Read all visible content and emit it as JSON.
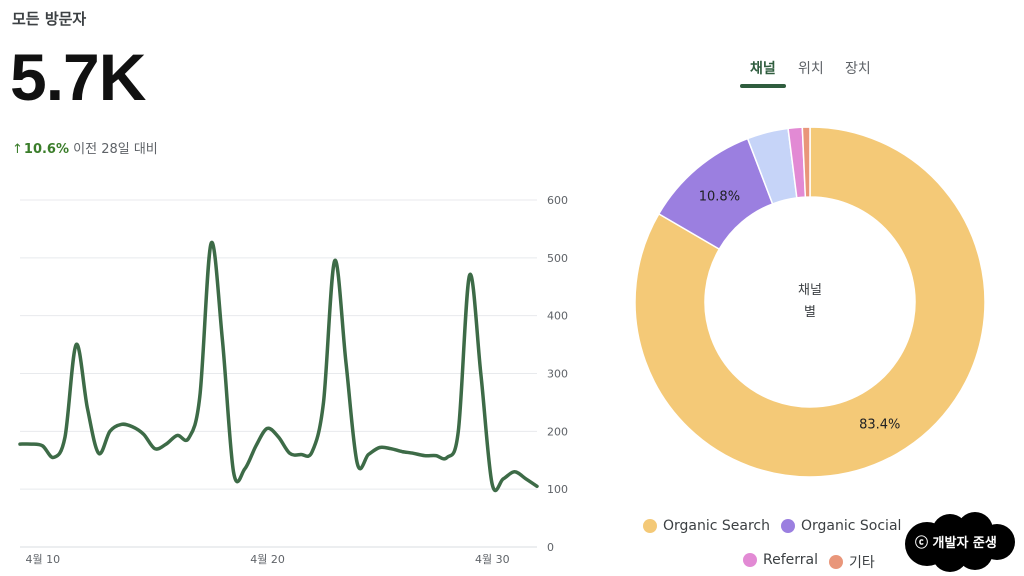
{
  "header": {
    "title": "모든 방문자",
    "big_value": "5.7K",
    "delta_arrow": "↑",
    "delta_value": "10.6%",
    "delta_caption": "이전 28일 대비"
  },
  "tabs": [
    {
      "label": "채널",
      "active": true
    },
    {
      "label": "위치",
      "active": false
    },
    {
      "label": "장치",
      "active": false
    }
  ],
  "watermark": "ⓒ 개발자 준생",
  "colors": {
    "line": "#3d6b47",
    "grid": "#e8eaed",
    "axis_text": "#5f6368",
    "active_tab": "#2f5d3e"
  },
  "chart_data": [
    {
      "type": "line",
      "title": "",
      "xlabel": "",
      "ylabel": "",
      "ylim": [
        0,
        600
      ],
      "y_ticks": [
        "0",
        "100",
        "200",
        "300",
        "400",
        "500",
        "600"
      ],
      "y_axis_side": "right",
      "grid": true,
      "x_tick_labels": [
        {
          "label": "4월 10",
          "day": 10
        },
        {
          "label": "4월 20",
          "day": 20
        },
        {
          "label": "4월 30",
          "day": 30
        }
      ],
      "series": [
        {
          "color": "#3d6b47",
          "points": [
            [
              9.0,
              178
            ],
            [
              9.5,
              178
            ],
            [
              10.0,
              175
            ],
            [
              10.5,
              155
            ],
            [
              11.0,
              190
            ],
            [
              11.5,
              350
            ],
            [
              12.0,
              240
            ],
            [
              12.5,
              162
            ],
            [
              13.0,
              200
            ],
            [
              13.5,
              212
            ],
            [
              14.0,
              208
            ],
            [
              14.5,
              195
            ],
            [
              15.0,
              170
            ],
            [
              15.5,
              178
            ],
            [
              16.0,
              193
            ],
            [
              16.5,
              188
            ],
            [
              17.0,
              260
            ],
            [
              17.5,
              525
            ],
            [
              18.0,
              360
            ],
            [
              18.5,
              130
            ],
            [
              19.0,
              135
            ],
            [
              19.5,
              175
            ],
            [
              20.0,
              205
            ],
            [
              20.5,
              190
            ],
            [
              21.0,
              162
            ],
            [
              21.5,
              160
            ],
            [
              22.0,
              165
            ],
            [
              22.5,
              250
            ],
            [
              23.0,
              495
            ],
            [
              23.5,
              320
            ],
            [
              24.0,
              145
            ],
            [
              24.5,
              160
            ],
            [
              25.0,
              172
            ],
            [
              25.5,
              170
            ],
            [
              26.0,
              165
            ],
            [
              26.5,
              162
            ],
            [
              27.0,
              158
            ],
            [
              27.5,
              158
            ],
            [
              28.0,
              155
            ],
            [
              28.5,
              200
            ],
            [
              29.0,
              470
            ],
            [
              29.5,
              300
            ],
            [
              30.0,
              110
            ],
            [
              30.5,
              118
            ],
            [
              31.0,
              130
            ],
            [
              31.5,
              118
            ],
            [
              32.0,
              105
            ]
          ]
        }
      ]
    },
    {
      "type": "pie",
      "title": "",
      "center_label": [
        "채널",
        "별"
      ],
      "slices": [
        {
          "name": "Organic Search",
          "value": 83.4,
          "label": "83.4%",
          "color": "#f4c977"
        },
        {
          "name": "Organic Social",
          "value": 10.8,
          "label": "10.8%",
          "color": "#9b7fe0"
        },
        {
          "name": "",
          "value": 3.8,
          "label": "",
          "color": "#c6d4f8"
        },
        {
          "name": "Referral",
          "value": 1.3,
          "label": "",
          "color": "#e28ad4"
        },
        {
          "name": "기타",
          "value": 0.7,
          "label": "",
          "color": "#e9967a"
        }
      ],
      "legend": [
        {
          "name": "Organic Search",
          "color": "#f4c977"
        },
        {
          "name": "Organic Social",
          "color": "#9b7fe0"
        },
        {
          "name": "Referral",
          "color": "#e28ad4"
        },
        {
          "name": "기타",
          "color": "#e9967a"
        }
      ],
      "legend_position": "bottom"
    }
  ]
}
